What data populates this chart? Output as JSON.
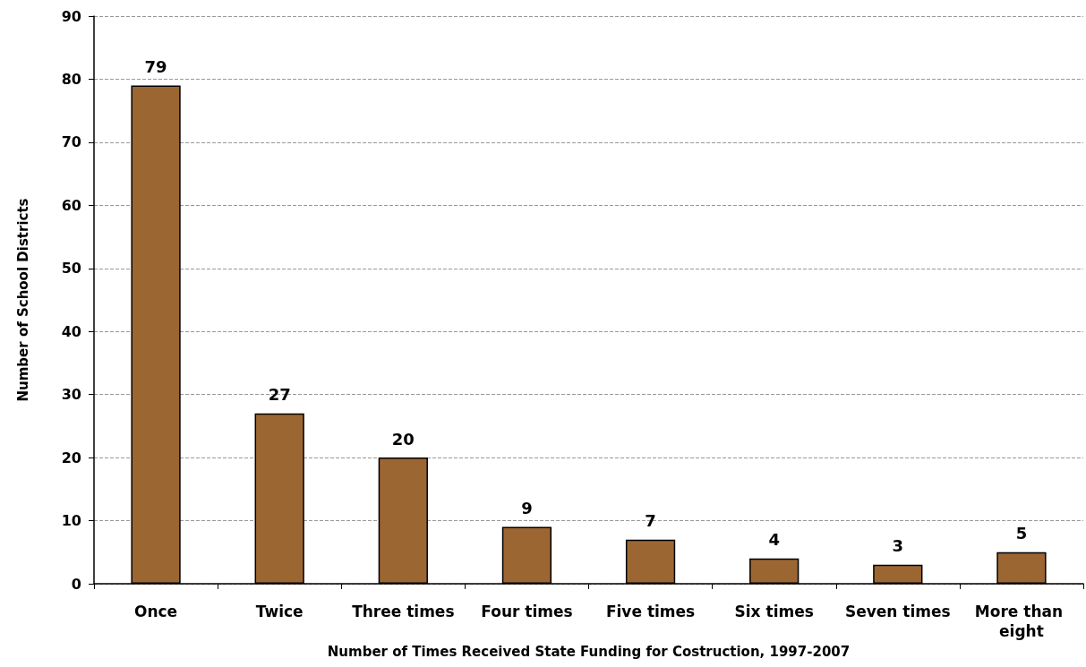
{
  "chart_data": {
    "type": "bar",
    "xlabel": "Number of Times Received State Funding for Costruction, 1997-2007",
    "ylabel": "Number of School Districts",
    "categories": [
      "Once",
      "Twice",
      "Three times",
      "Four times",
      "Five times",
      "Six times",
      "Seven times",
      "More than eight"
    ],
    "values": [
      79,
      27,
      20,
      9,
      7,
      4,
      3,
      5
    ],
    "color": "#9c6633",
    "ylim": [
      0,
      90
    ],
    "yticks": [
      0,
      10,
      20,
      30,
      40,
      50,
      60,
      70,
      80,
      90
    ],
    "grid": "y",
    "data_labels": true
  }
}
